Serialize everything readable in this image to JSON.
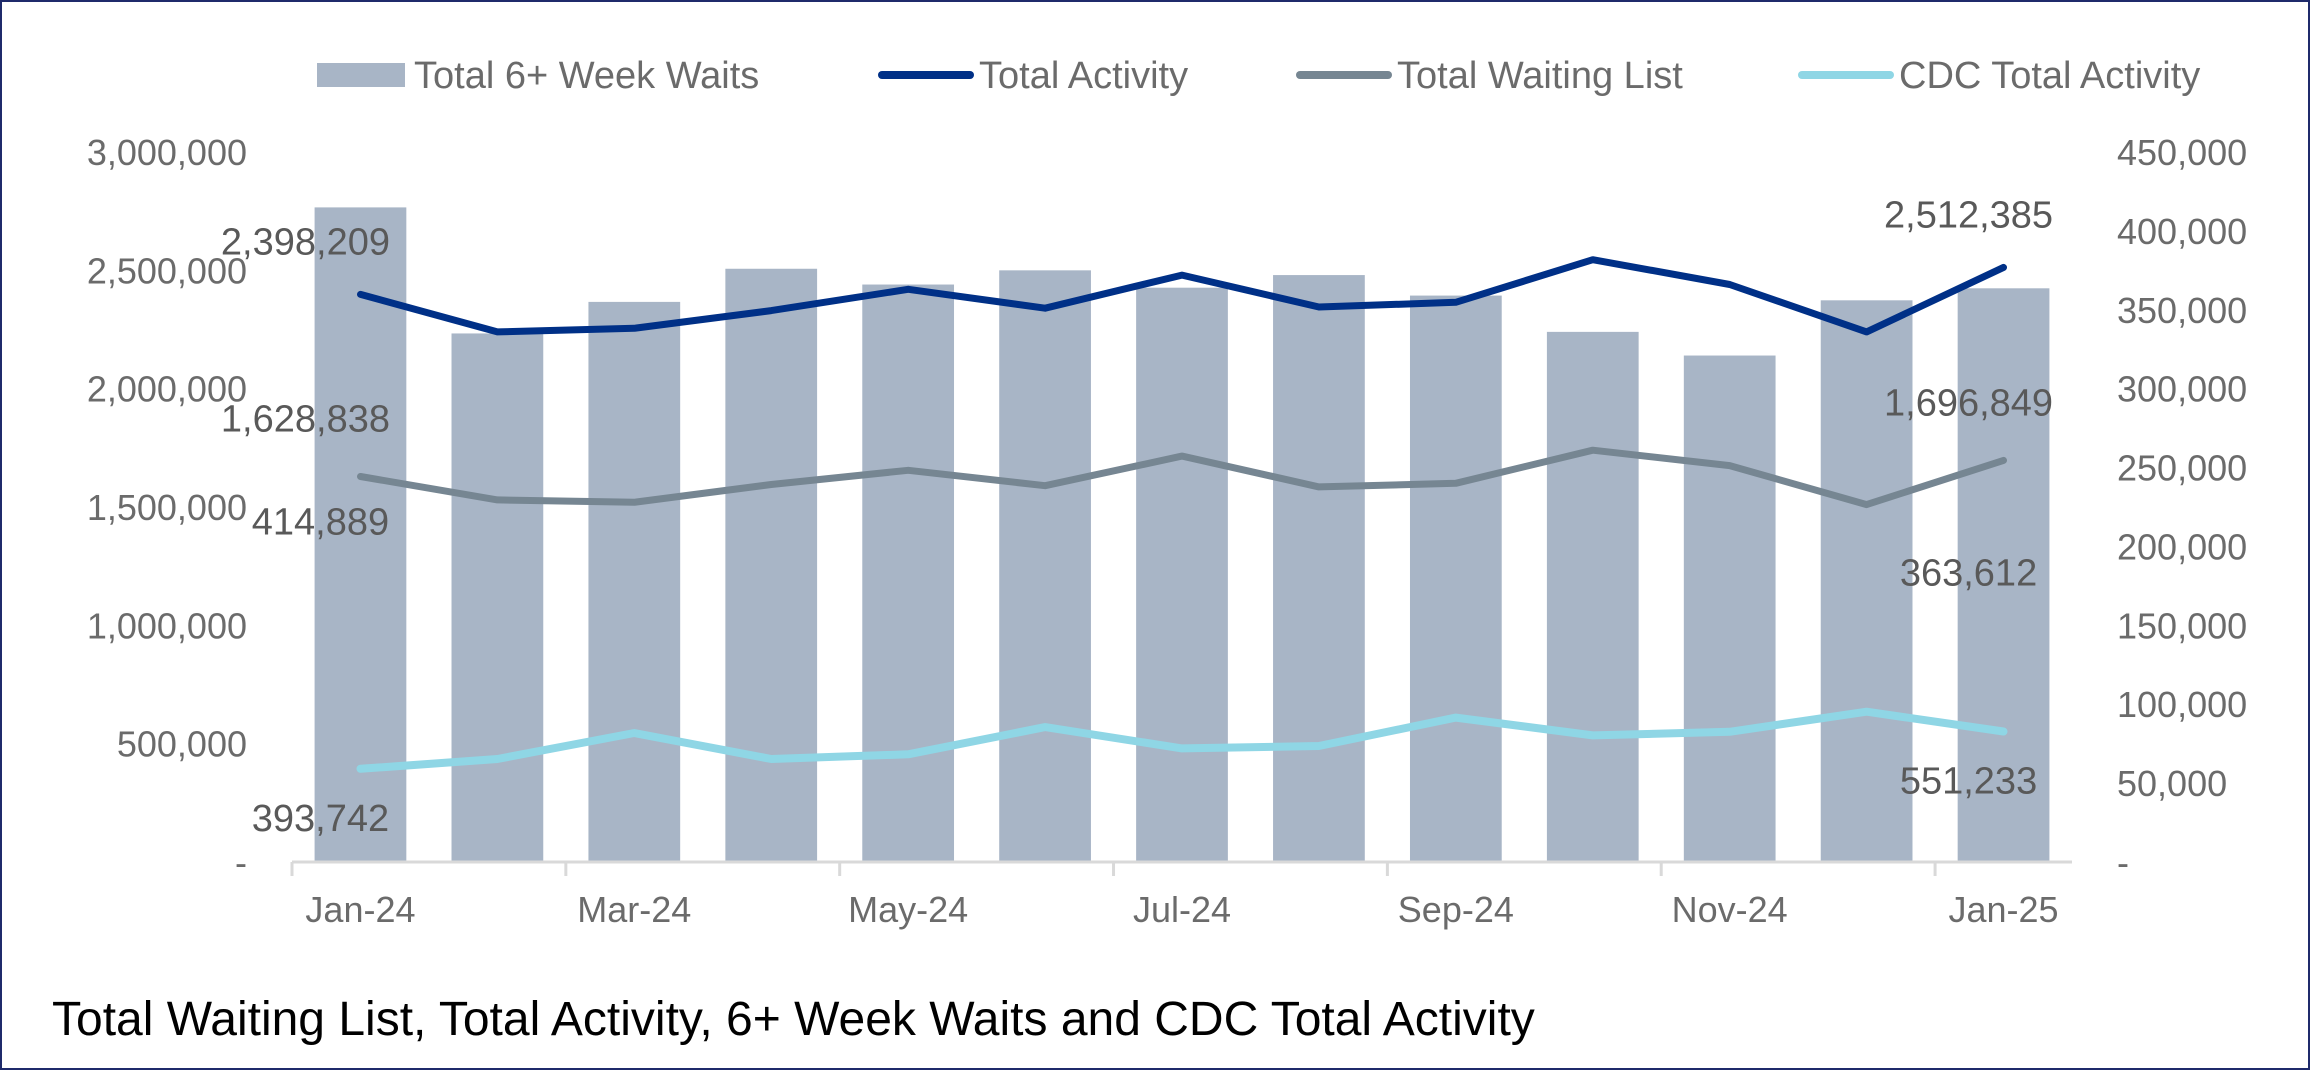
{
  "caption": "Total Waiting List, Total Activity, 6+ Week Waits and CDC Total Activity",
  "colors": {
    "bars": "#a8b5c6",
    "total_activity": "#003087",
    "total_waiting_list": "#768692",
    "cdc_total_activity": "#8fd6e5",
    "axis": "#d9d9d9",
    "tick_text": "#6b6b6b"
  },
  "chart_data": {
    "type": "bar",
    "categories": [
      "Jan-24",
      "Feb-24",
      "Mar-24",
      "Apr-24",
      "May-24",
      "Jun-24",
      "Jul-24",
      "Aug-24",
      "Sep-24",
      "Oct-24",
      "Nov-24",
      "Dec-24",
      "Jan-25"
    ],
    "x_tick_labels": [
      "Jan-24",
      "Mar-24",
      "May-24",
      "Jul-24",
      "Sep-24",
      "Nov-24",
      "Jan-25"
    ],
    "left_axis": {
      "ylim": [
        0,
        3000000
      ],
      "tick_labels": [
        "-",
        "500,000",
        "1,000,000",
        "1,500,000",
        "2,000,000",
        "2,500,000",
        "3,000,000"
      ]
    },
    "right_axis": {
      "ylim": [
        0,
        450000
      ],
      "tick_labels": [
        "-",
        "50,000",
        "100,000",
        "150,000",
        "200,000",
        "250,000",
        "300,000",
        "350,000",
        "400,000",
        "450,000"
      ]
    },
    "legend": {
      "position": "top"
    },
    "series": [
      {
        "name": "Total 6+ Week Waits",
        "type": "bar",
        "axis": "right",
        "values": [
          414889,
          335000,
          355000,
          376000,
          366000,
          375000,
          364000,
          372000,
          359000,
          336000,
          321000,
          356000,
          363612
        ]
      },
      {
        "name": "Total Activity",
        "type": "line",
        "axis": "left",
        "values": [
          2398209,
          2240000,
          2255000,
          2330000,
          2420000,
          2340000,
          2480000,
          2345000,
          2365000,
          2545000,
          2440000,
          2240000,
          2512385
        ]
      },
      {
        "name": "Total Waiting List",
        "type": "line",
        "axis": "left",
        "values": [
          1628838,
          1530000,
          1520000,
          1595000,
          1655000,
          1590000,
          1715000,
          1585000,
          1600000,
          1740000,
          1675000,
          1510000,
          1696849
        ]
      },
      {
        "name": "CDC Total Activity",
        "type": "line",
        "axis": "left",
        "values": [
          393742,
          435000,
          545000,
          435000,
          455000,
          570000,
          480000,
          490000,
          610000,
          535000,
          550000,
          635000,
          551233
        ]
      }
    ],
    "data_labels": [
      {
        "series": "Total Activity",
        "index": 0,
        "text": "2,398,209"
      },
      {
        "series": "Total Activity",
        "index": 12,
        "text": "2,512,385"
      },
      {
        "series": "Total Waiting List",
        "index": 0,
        "text": "1,628,838"
      },
      {
        "series": "Total Waiting List",
        "index": 12,
        "text": "1,696,849"
      },
      {
        "series": "Total 6+ Week Waits",
        "index": 0,
        "text": "414,889"
      },
      {
        "series": "Total 6+ Week Waits",
        "index": 12,
        "text": "363,612"
      },
      {
        "series": "CDC Total Activity",
        "index": 0,
        "text": "393,742"
      },
      {
        "series": "CDC Total Activity",
        "index": 12,
        "text": "551,233"
      }
    ]
  }
}
